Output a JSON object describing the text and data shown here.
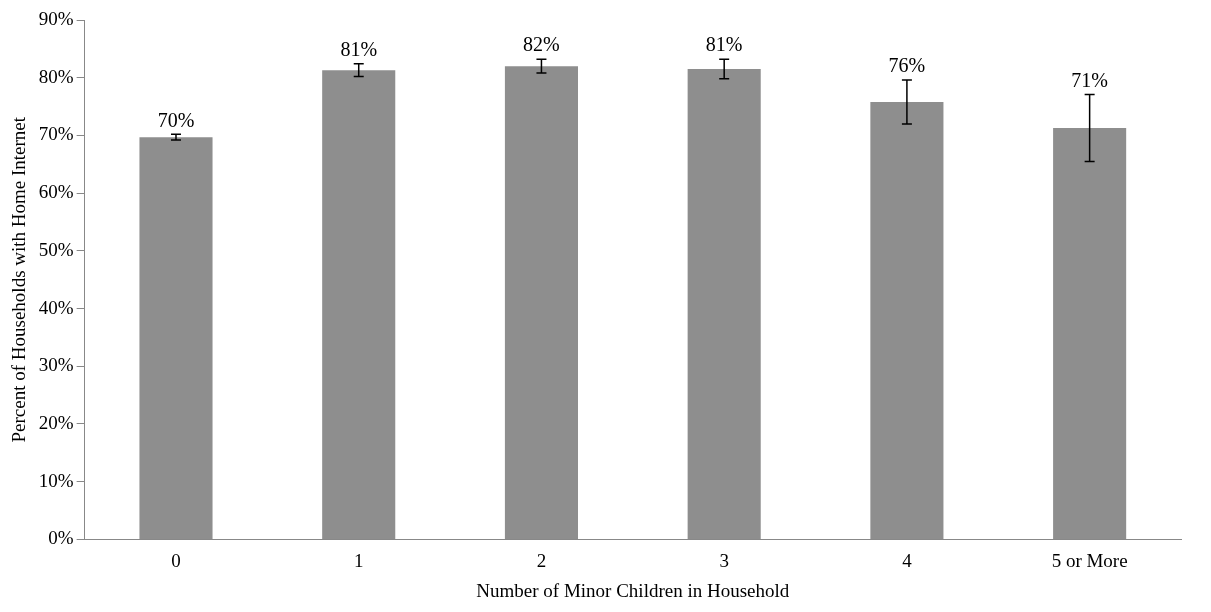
{
  "chart_data": {
    "type": "bar",
    "xlabel": "Number of Minor Children in Household",
    "ylabel": "Percent of Households with Home Internet",
    "categories": [
      "0",
      "1",
      "2",
      "3",
      "4",
      "5 or More"
    ],
    "values": [
      69.7,
      81.3,
      82.0,
      81.5,
      75.8,
      71.3
    ],
    "errors": [
      0.5,
      1.1,
      1.2,
      1.7,
      3.8,
      5.8
    ],
    "value_labels": [
      "70%",
      "81%",
      "82%",
      "81%",
      "76%",
      "71%"
    ],
    "color": "#8e8e8e",
    "ylim": [
      0,
      90
    ],
    "yticks": [
      {
        "value": 0,
        "label": "0%"
      },
      {
        "value": 10,
        "label": "10%"
      },
      {
        "value": 20,
        "label": "20%"
      },
      {
        "value": 30,
        "label": "30%"
      },
      {
        "value": 40,
        "label": "40%"
      },
      {
        "value": 50,
        "label": "50%"
      },
      {
        "value": 60,
        "label": "60%"
      },
      {
        "value": 70,
        "label": "70%"
      },
      {
        "value": 80,
        "label": "80%"
      },
      {
        "value": 90,
        "label": "90%"
      }
    ],
    "grid": false,
    "legend": false
  }
}
